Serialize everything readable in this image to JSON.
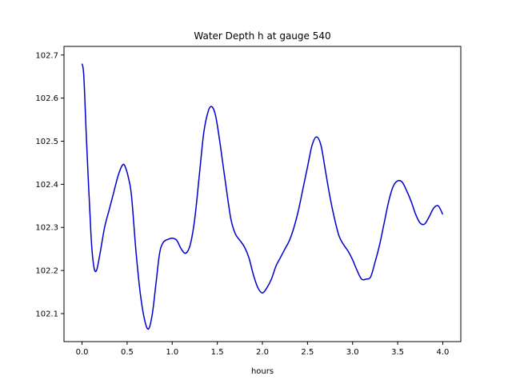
{
  "chart_data": {
    "type": "line",
    "title": "Water Depth h at gauge 540",
    "xlabel": "hours",
    "ylabel": "",
    "xlim": [
      -0.2,
      4.2
    ],
    "ylim": [
      102.035,
      102.72
    ],
    "xticks": [
      0.0,
      0.5,
      1.0,
      1.5,
      2.0,
      2.5,
      3.0,
      3.5,
      4.0
    ],
    "xtick_labels": [
      "0.0",
      "0.5",
      "1.0",
      "1.5",
      "2.0",
      "2.5",
      "3.0",
      "3.5",
      "4.0"
    ],
    "yticks": [
      102.1,
      102.2,
      102.3,
      102.4,
      102.5,
      102.6,
      102.7
    ],
    "ytick_labels": [
      "102.1",
      "102.2",
      "102.3",
      "102.4",
      "102.5",
      "102.6",
      "102.7"
    ],
    "grid": false,
    "legend": "none",
    "series": [
      {
        "color": "#0000cc",
        "x": [
          0.0,
          0.02,
          0.05,
          0.1,
          0.13,
          0.16,
          0.2,
          0.25,
          0.3,
          0.35,
          0.4,
          0.45,
          0.48,
          0.52,
          0.55,
          0.6,
          0.65,
          0.7,
          0.74,
          0.78,
          0.82,
          0.86,
          0.9,
          0.95,
          1.0,
          1.05,
          1.1,
          1.15,
          1.2,
          1.25,
          1.3,
          1.35,
          1.4,
          1.44,
          1.48,
          1.52,
          1.56,
          1.6,
          1.65,
          1.7,
          1.75,
          1.8,
          1.85,
          1.9,
          1.95,
          2.0,
          2.05,
          2.1,
          2.15,
          2.2,
          2.25,
          2.3,
          2.35,
          2.4,
          2.45,
          2.5,
          2.55,
          2.6,
          2.65,
          2.7,
          2.75,
          2.8,
          2.85,
          2.9,
          2.95,
          3.0,
          3.05,
          3.1,
          3.15,
          3.2,
          3.25,
          3.3,
          3.35,
          3.4,
          3.45,
          3.5,
          3.55,
          3.6,
          3.65,
          3.7,
          3.75,
          3.8,
          3.85,
          3.9,
          3.95,
          4.0
        ],
        "y": [
          102.68,
          102.65,
          102.5,
          102.28,
          102.21,
          102.2,
          102.24,
          102.3,
          102.34,
          102.38,
          102.42,
          102.445,
          102.44,
          102.41,
          102.37,
          102.24,
          102.14,
          102.08,
          102.065,
          102.1,
          102.17,
          102.24,
          102.265,
          102.272,
          102.275,
          102.27,
          102.25,
          102.24,
          102.26,
          102.32,
          102.42,
          102.52,
          102.57,
          102.58,
          102.56,
          102.51,
          102.45,
          102.39,
          102.32,
          102.285,
          102.27,
          102.255,
          102.23,
          102.19,
          102.16,
          102.148,
          102.16,
          102.18,
          102.21,
          102.23,
          102.25,
          102.27,
          102.3,
          102.34,
          102.39,
          102.44,
          102.49,
          102.51,
          102.49,
          102.43,
          102.37,
          102.32,
          102.28,
          102.26,
          102.245,
          102.225,
          102.2,
          102.18,
          102.18,
          102.185,
          102.22,
          102.26,
          102.31,
          102.36,
          102.395,
          102.408,
          102.405,
          102.385,
          102.36,
          102.33,
          102.31,
          102.308,
          102.325,
          102.345,
          102.35,
          102.33
        ]
      }
    ]
  }
}
